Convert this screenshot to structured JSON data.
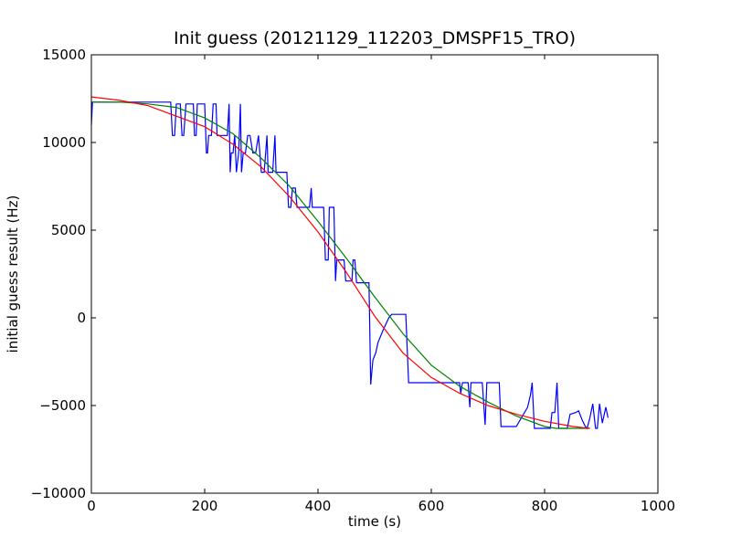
{
  "chart_data": {
    "type": "line",
    "title": "Init guess (20121129_112203_DMSPF15_TRO)",
    "xlabel": "time (s)",
    "ylabel": "initial guess result (Hz)",
    "xlim": [
      0,
      1000
    ],
    "ylim": [
      -10000,
      15000
    ],
    "xticks": [
      "0",
      "200",
      "400",
      "600",
      "800",
      "1000"
    ],
    "yticks": [
      "−10000",
      "−5000",
      "0",
      "5000",
      "10000",
      "15000"
    ],
    "grid": false,
    "legend": "none",
    "series": [
      {
        "color": "#0000ff",
        "points": [
          [
            0,
            11000
          ],
          [
            2,
            12300
          ],
          [
            60,
            12300
          ],
          [
            140,
            12300
          ],
          [
            143,
            10400
          ],
          [
            147,
            10400
          ],
          [
            150,
            12200
          ],
          [
            157,
            12200
          ],
          [
            160,
            10400
          ],
          [
            163,
            10400
          ],
          [
            167,
            12200
          ],
          [
            180,
            12200
          ],
          [
            182,
            10400
          ],
          [
            185,
            10400
          ],
          [
            187,
            12200
          ],
          [
            200,
            12200
          ],
          [
            203,
            9400
          ],
          [
            205,
            9400
          ],
          [
            207,
            10400
          ],
          [
            212,
            10400
          ],
          [
            215,
            12200
          ],
          [
            220,
            12200
          ],
          [
            222,
            10400
          ],
          [
            240,
            10400
          ],
          [
            243,
            12200
          ],
          [
            245,
            8300
          ],
          [
            247,
            9400
          ],
          [
            250,
            9400
          ],
          [
            253,
            10400
          ],
          [
            256,
            8300
          ],
          [
            260,
            9400
          ],
          [
            263,
            12200
          ],
          [
            265,
            8300
          ],
          [
            268,
            9400
          ],
          [
            272,
            9400
          ],
          [
            276,
            10400
          ],
          [
            280,
            10400
          ],
          [
            285,
            9400
          ],
          [
            290,
            9400
          ],
          [
            295,
            10400
          ],
          [
            300,
            8300
          ],
          [
            305,
            8300
          ],
          [
            310,
            10400
          ],
          [
            312,
            8300
          ],
          [
            320,
            8300
          ],
          [
            324,
            10400
          ],
          [
            326,
            8300
          ],
          [
            345,
            8300
          ],
          [
            348,
            6300
          ],
          [
            352,
            6300
          ],
          [
            355,
            7400
          ],
          [
            360,
            7400
          ],
          [
            363,
            6300
          ],
          [
            385,
            6300
          ],
          [
            388,
            7400
          ],
          [
            390,
            6300
          ],
          [
            410,
            6300
          ],
          [
            413,
            3300
          ],
          [
            418,
            3300
          ],
          [
            420,
            6300
          ],
          [
            428,
            6300
          ],
          [
            431,
            2100
          ],
          [
            433,
            3300
          ],
          [
            446,
            3300
          ],
          [
            449,
            2100
          ],
          [
            460,
            2100
          ],
          [
            462,
            3300
          ],
          [
            465,
            3300
          ],
          [
            468,
            2000
          ],
          [
            490,
            2000
          ],
          [
            493,
            -3800
          ],
          [
            497,
            -2400
          ],
          [
            502,
            -2000
          ],
          [
            506,
            -1400
          ],
          [
            515,
            -700
          ],
          [
            525,
            0
          ],
          [
            530,
            200
          ],
          [
            555,
            200
          ],
          [
            560,
            -3700
          ],
          [
            650,
            -3700
          ],
          [
            652,
            -4300
          ],
          [
            655,
            -3700
          ],
          [
            665,
            -3700
          ],
          [
            668,
            -5100
          ],
          [
            670,
            -3700
          ],
          [
            690,
            -3700
          ],
          [
            695,
            -6100
          ],
          [
            698,
            -3700
          ],
          [
            720,
            -3700
          ],
          [
            723,
            -6200
          ],
          [
            750,
            -6200
          ],
          [
            770,
            -5100
          ],
          [
            775,
            -4400
          ],
          [
            778,
            -3700
          ],
          [
            782,
            -6300
          ],
          [
            810,
            -6300
          ],
          [
            813,
            -5400
          ],
          [
            818,
            -5400
          ],
          [
            822,
            -3700
          ],
          [
            825,
            -6300
          ],
          [
            840,
            -6300
          ],
          [
            845,
            -5500
          ],
          [
            855,
            -5400
          ],
          [
            860,
            -5300
          ],
          [
            866,
            -5800
          ],
          [
            872,
            -6200
          ],
          [
            875,
            -6300
          ],
          [
            880,
            -5700
          ],
          [
            885,
            -4900
          ],
          [
            890,
            -6300
          ],
          [
            893,
            -6300
          ],
          [
            897,
            -4900
          ],
          [
            902,
            -6000
          ],
          [
            908,
            -5100
          ],
          [
            912,
            -5700
          ]
        ]
      },
      {
        "color": "#008000",
        "points": [
          [
            0,
            12300
          ],
          [
            50,
            12300
          ],
          [
            100,
            12200
          ],
          [
            150,
            12000
          ],
          [
            200,
            11400
          ],
          [
            250,
            10500
          ],
          [
            300,
            9100
          ],
          [
            350,
            7500
          ],
          [
            400,
            5500
          ],
          [
            450,
            3400
          ],
          [
            500,
            1200
          ],
          [
            550,
            -900
          ],
          [
            600,
            -2700
          ],
          [
            650,
            -3900
          ],
          [
            700,
            -4800
          ],
          [
            750,
            -5600
          ],
          [
            800,
            -6200
          ],
          [
            820,
            -6300
          ],
          [
            880,
            -6300
          ]
        ]
      },
      {
        "color": "#ff0000",
        "points": [
          [
            0,
            12600
          ],
          [
            50,
            12400
          ],
          [
            100,
            12100
          ],
          [
            150,
            11500
          ],
          [
            200,
            10900
          ],
          [
            250,
            9900
          ],
          [
            300,
            8600
          ],
          [
            350,
            6900
          ],
          [
            400,
            4900
          ],
          [
            450,
            2600
          ],
          [
            500,
            100
          ],
          [
            550,
            -2000
          ],
          [
            600,
            -3400
          ],
          [
            650,
            -4300
          ],
          [
            700,
            -5000
          ],
          [
            750,
            -5500
          ],
          [
            800,
            -5900
          ],
          [
            850,
            -6200
          ],
          [
            880,
            -6300
          ]
        ]
      }
    ]
  }
}
